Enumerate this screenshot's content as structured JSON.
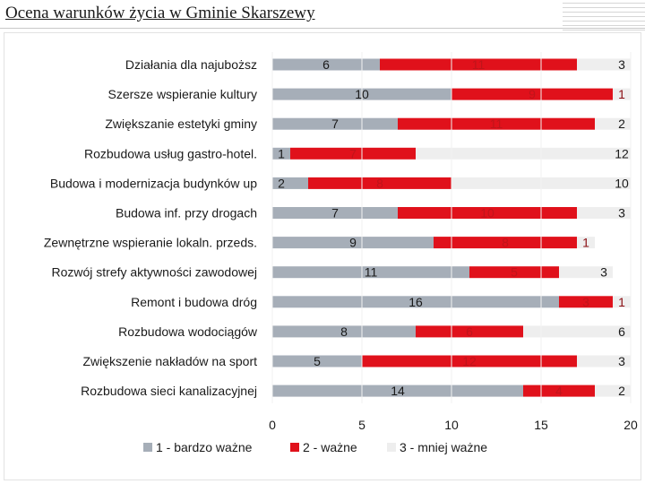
{
  "header": {
    "title": "Ocena warunków życia w Gminie Skarszewy"
  },
  "colors": {
    "series1": "#a6aeb8",
    "series2": "#e0111b",
    "series3": "#eeeeee",
    "label_on_grey": "#1a1a1a",
    "label_on_red": "#c0141b",
    "label_outside": "#1a1a1a"
  },
  "chart_data": {
    "type": "bar",
    "orientation": "horizontal",
    "stacked": true,
    "categories": [
      "Działania dla najuboższ",
      "Szersze wspieranie kultury",
      "Zwiększanie estetyki gminy",
      "Rozbudowa usług gastro-hotel.",
      "Budowa i modernizacja budynków up",
      "Budowa inf. przy drogach",
      "Zewnętrzne wspieranie lokaln. przeds.",
      "Rozwój strefy aktywności zawodowej",
      "Remont i budowa dróg",
      "Rozbudowa wodociągów",
      "Zwiększenie nakładów na sport",
      "Rozbudowa sieci kanalizacyjnej"
    ],
    "series": [
      {
        "name": "1 - bardzo ważne",
        "values": [
          6,
          10,
          7,
          1,
          2,
          7,
          9,
          11,
          16,
          8,
          5,
          14
        ]
      },
      {
        "name": "2 - ważne",
        "values": [
          11,
          9,
          11,
          7,
          8,
          10,
          8,
          5,
          3,
          6,
          12,
          4
        ]
      },
      {
        "name": "3 - mniej ważne",
        "values": [
          3,
          1,
          2,
          12,
          10,
          3,
          1,
          3,
          1,
          6,
          3,
          2
        ]
      }
    ],
    "xlim": [
      0,
      20
    ],
    "xticks": [
      0,
      5,
      10,
      15,
      20
    ],
    "legend_position": "bottom"
  }
}
